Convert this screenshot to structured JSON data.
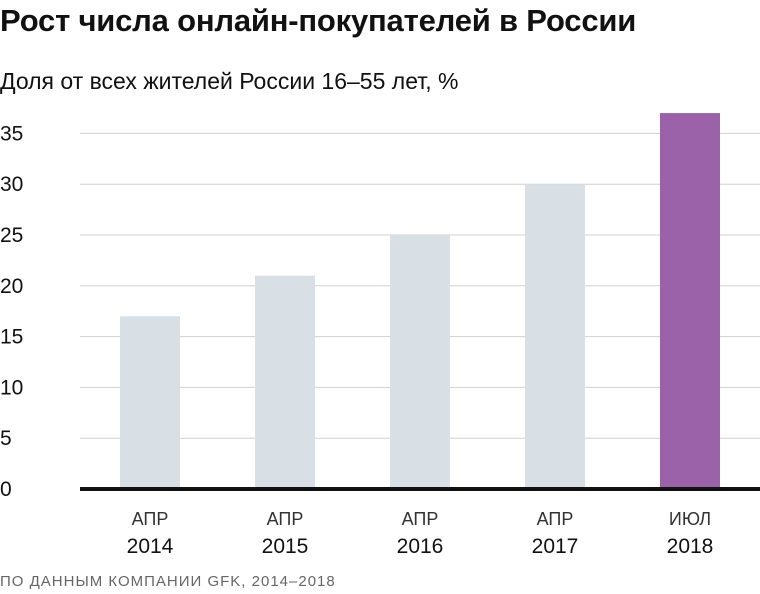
{
  "title": "Рост числа онлайн-покупателей в России",
  "subtitle": "Доля от всех жителей России 16–55 лет, %",
  "source": "ПО ДАННЫМ КОМПАНИИ GFK, 2014–2018",
  "colors": {
    "bar_default": "#d8e0e5",
    "bar_highlight": "#9b62a9",
    "gridline": "#d0d0d0",
    "baseline": "#111111",
    "text": "#111111"
  },
  "chart_data": {
    "type": "bar",
    "categories": [
      {
        "month": "АПР",
        "year": "2014"
      },
      {
        "month": "АПР",
        "year": "2015"
      },
      {
        "month": "АПР",
        "year": "2016"
      },
      {
        "month": "АПР",
        "year": "2017"
      },
      {
        "month": "ИЮЛ",
        "year": "2018"
      }
    ],
    "values": [
      17,
      21,
      25,
      30,
      37
    ],
    "highlight_index": 4,
    "ylim": [
      0,
      37
    ],
    "yticks": [
      0,
      5,
      10,
      15,
      20,
      25,
      30,
      35
    ],
    "grid": true
  }
}
